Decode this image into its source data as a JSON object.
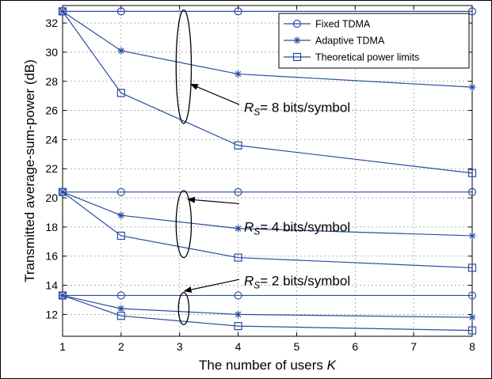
{
  "chart_data": {
    "type": "line",
    "xlabel": "The number of users",
    "xlabel_var": "K",
    "ylabel": "Transmitted average-sum-power (dB)",
    "x": [
      1,
      2,
      4,
      8
    ],
    "xlim": [
      1,
      8
    ],
    "ylim": [
      10.5,
      33.2
    ],
    "xticks": [
      1,
      2,
      3,
      4,
      5,
      6,
      7,
      8
    ],
    "yticks": [
      12,
      14,
      16,
      18,
      20,
      22,
      24,
      26,
      28,
      30,
      32
    ],
    "line_color": "#2a4da0",
    "grid": true,
    "legend_position": "top-right",
    "legend": [
      {
        "label": "Fixed TDMA",
        "marker": "circle"
      },
      {
        "label": "Adaptive TDMA",
        "marker": "star"
      },
      {
        "label": "Theoretical power limits",
        "marker": "square"
      }
    ],
    "series": [
      {
        "name": "Fixed TDMA",
        "group": "8",
        "marker": "circle",
        "values": [
          32.8,
          32.8,
          32.8,
          32.8
        ]
      },
      {
        "name": "Adaptive TDMA",
        "group": "8",
        "marker": "star",
        "values": [
          32.8,
          30.1,
          28.5,
          27.6
        ]
      },
      {
        "name": "Theoretical power limits",
        "group": "8",
        "marker": "square",
        "values": [
          32.8,
          27.2,
          23.6,
          21.7
        ]
      },
      {
        "name": "Fixed TDMA",
        "group": "4",
        "marker": "circle",
        "values": [
          20.4,
          20.4,
          20.4,
          20.4
        ]
      },
      {
        "name": "Adaptive TDMA",
        "group": "4",
        "marker": "star",
        "values": [
          20.4,
          18.8,
          17.9,
          17.4
        ]
      },
      {
        "name": "Theoretical power limits",
        "group": "4",
        "marker": "square",
        "values": [
          20.4,
          17.4,
          15.9,
          15.2
        ]
      },
      {
        "name": "Fixed TDMA",
        "group": "2",
        "marker": "circle",
        "values": [
          13.3,
          13.3,
          13.3,
          13.3
        ]
      },
      {
        "name": "Adaptive TDMA",
        "group": "2",
        "marker": "star",
        "values": [
          13.3,
          12.4,
          12.0,
          11.8
        ]
      },
      {
        "name": "Theoretical power limits",
        "group": "2",
        "marker": "square",
        "values": [
          13.3,
          11.9,
          11.2,
          10.9
        ]
      }
    ],
    "annotations": [
      {
        "symbol": "R",
        "subscript": "S",
        "value": "= 8 bits/symbol",
        "text_at": [
          4.1,
          25.9
        ],
        "ellipse_center": [
          3.07,
          29.0
        ],
        "ellipse_rx": 0.13,
        "ellipse_ry": 3.9,
        "arrow_from": [
          4.02,
          26.4
        ],
        "arrow_to": [
          3.19,
          27.8
        ]
      },
      {
        "symbol": "R",
        "subscript": "S",
        "value": "= 4 bits/symbol",
        "text_at": [
          4.1,
          17.7
        ],
        "ellipse_center": [
          3.07,
          18.2
        ],
        "ellipse_rx": 0.13,
        "ellipse_ry": 2.3,
        "arrow_from": [
          4.02,
          19.6
        ],
        "arrow_to": [
          3.14,
          19.9
        ]
      },
      {
        "symbol": "R",
        "subscript": "S",
        "value": "= 2 bits/symbol",
        "text_at": [
          4.1,
          14.0
        ],
        "ellipse_center": [
          3.07,
          12.4
        ],
        "ellipse_rx": 0.09,
        "ellipse_ry": 1.1,
        "arrow_from": [
          4.02,
          14.4
        ],
        "arrow_to": [
          3.08,
          13.6
        ]
      }
    ]
  }
}
